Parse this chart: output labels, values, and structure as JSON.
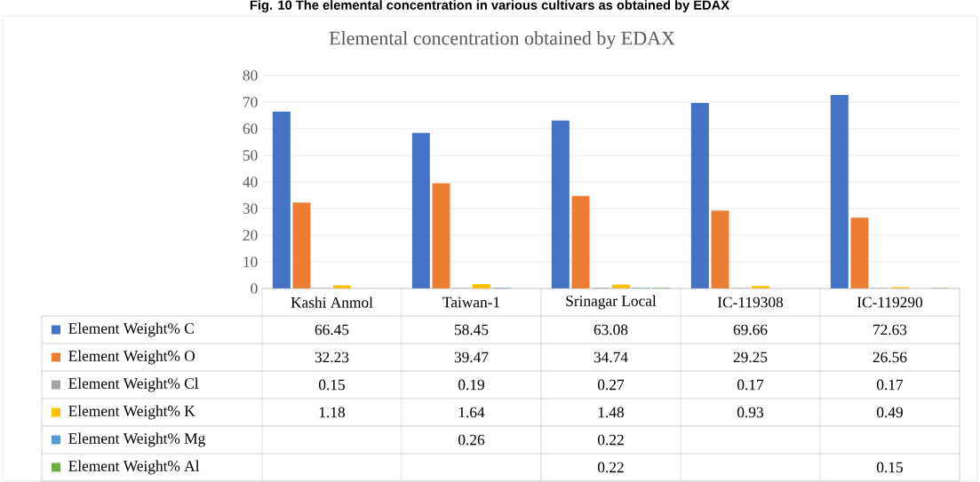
{
  "chart_data": {
    "type": "bar",
    "title": "Elemental concentration obtained by EDAX",
    "annotations": [
      "Fig. 10 The elemental concentration in various cultivars as obtained by EDAX"
    ],
    "categories": [
      "Kashi Anmol",
      "Taiwan-1",
      "Srinagar Local",
      "IC-119308",
      "IC-119290"
    ],
    "series": [
      {
        "name": "Element Weight% C",
        "color": "#4472c4",
        "values": [
          66.45,
          58.45,
          63.08,
          69.66,
          72.63
        ]
      },
      {
        "name": "Element Weight% O",
        "color": "#ed7d31",
        "values": [
          32.23,
          39.47,
          34.74,
          29.25,
          26.56
        ]
      },
      {
        "name": "Element Weight% Cl",
        "color": "#a5a5a5",
        "values": [
          0.15,
          0.19,
          0.27,
          0.17,
          0.17
        ]
      },
      {
        "name": "Element Weight% K",
        "color": "#ffc000",
        "values": [
          1.18,
          1.64,
          1.48,
          0.93,
          0.49
        ]
      },
      {
        "name": "Element Weight% Mg",
        "color": "#5b9bd5",
        "values": [
          null,
          0.26,
          0.22,
          null,
          null
        ]
      },
      {
        "name": "Element Weight% Al",
        "color": "#70ad47",
        "values": [
          null,
          null,
          0.22,
          null,
          0.15
        ]
      }
    ],
    "ylim": [
      0,
      80
    ],
    "yticks": [
      0,
      10,
      20,
      30,
      40,
      50,
      60,
      70,
      80
    ],
    "grid": "y",
    "legend": "bottom",
    "data_labels": true
  }
}
